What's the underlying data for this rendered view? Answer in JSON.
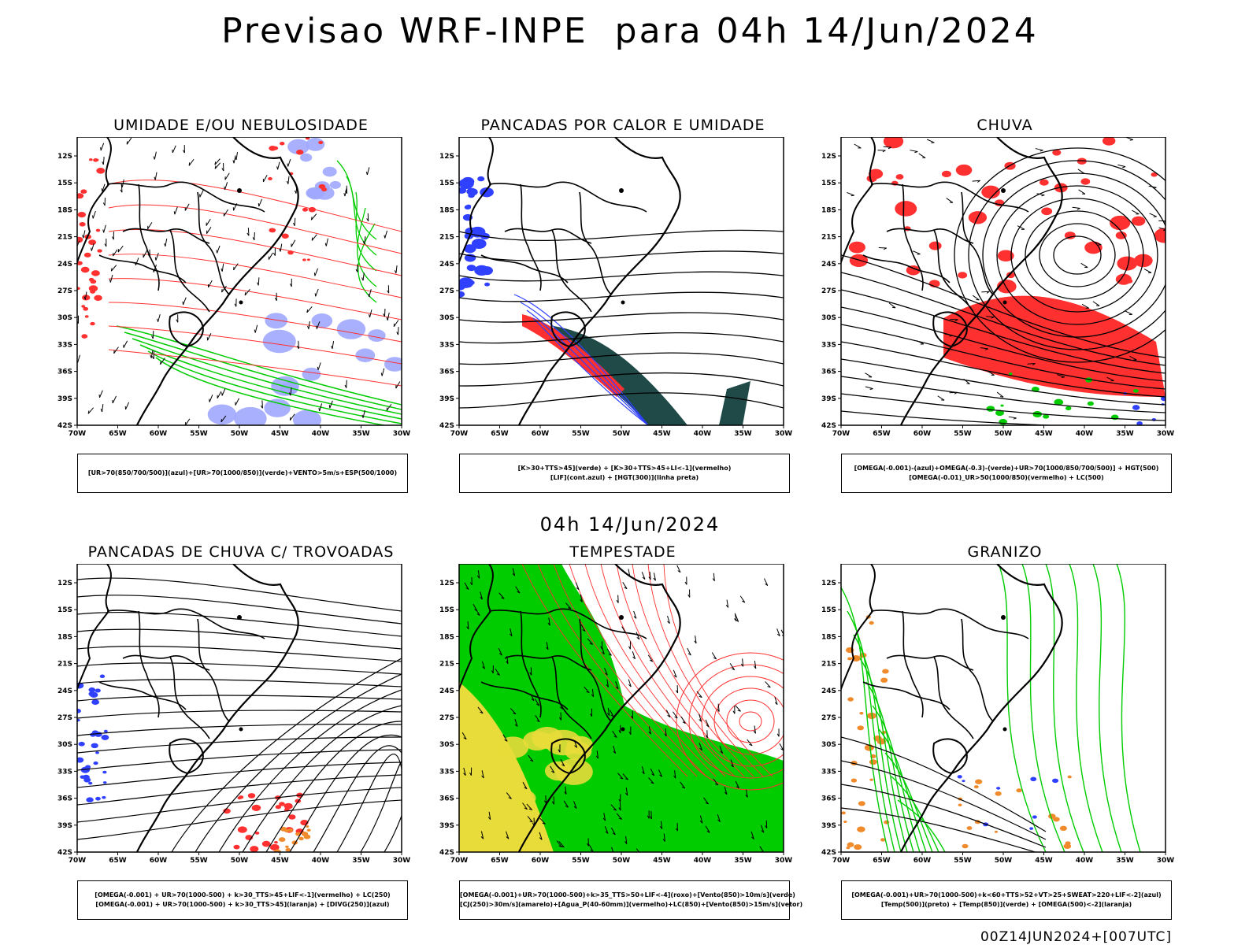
{
  "main_title": "Previsao WRF-INPE  para 04h 14/Jun/2024",
  "mid_title": "04h 14/Jun/2024",
  "footer": "00Z14JUN2024+[007UTC]",
  "axes": {
    "x_ticks": [
      "70W",
      "65W",
      "60W",
      "55W",
      "50W",
      "45W",
      "40W",
      "35W",
      "30W"
    ],
    "y_ticks": [
      "12S",
      "15S",
      "18S",
      "21S",
      "24S",
      "27S",
      "30S",
      "33S",
      "36S",
      "39S",
      "42S"
    ]
  },
  "colors": {
    "red": "#ff3030",
    "green": "#00cc00",
    "blue": "#3040ff",
    "lightblue": "#a0a8ff",
    "darkteal": "#1f4a48",
    "yellow": "#e8dc3a",
    "orange": "#f08a2a",
    "black": "#000000"
  },
  "panels": [
    {
      "id": "umidade",
      "title": "UMIDADE E/OU NEBULOSIDADE",
      "legend": [
        "[UR>70(850/700/500)](azul)+[UR>70(1000/850)](verde)+VENTO>5m/s+ESP(500/1000)"
      ]
    },
    {
      "id": "pancadas-calor",
      "title": "PANCADAS POR CALOR E UMIDADE",
      "legend": [
        "[K>30+TTS>45](verde) + [K>30+TTS>45+LI<-1](vermelho)",
        "[LIF](cont.azul) + [HGT(300)](linha preta)"
      ]
    },
    {
      "id": "chuva",
      "title": "CHUVA",
      "legend": [
        "[OMEGA(-0.001)-(azul)+OMEGA(-0.3)-(verde)+UR>70(1000/850/700/500)] + HGT(500)",
        "[OMEGA(-0.01)_UR>50(1000/850)(vermelho) + LC(500)"
      ]
    },
    {
      "id": "pancadas-trovoadas",
      "title": "PANCADAS DE CHUVA C/ TROVOADAS",
      "legend": [
        "[OMEGA(-0.001) + UR>70(1000-500) + k>30_TTS>45+LIF<-1](vermelho) + LC(250)",
        "[OMEGA(-0.001) + UR>70(1000-500) + k>30_TTS>45](laranja) + [DIVG(250)](azul)"
      ]
    },
    {
      "id": "tempestade",
      "title": "TEMPESTADE",
      "legend": [
        "[OMEGA(-0.001)+UR>70(1000-500)+k>35_TTS>50+LIF<-4](roxo)+[Vento(850)>10m/s](verde)",
        "[CJ(250)>30m/s](amarelo)+[Agua_P(40-60mm)](vermelho)+LC(850)+[Vento(850)>15m/s](vetor)"
      ]
    },
    {
      "id": "granizo",
      "title": "GRANIZO",
      "legend": [
        "[OMEGA(-0.001)+UR>70(1000-500)+k<60+TTS>52+VT>25+SWEAT>220+LIF<-2](azul)",
        "[Temp(500)](preto) + [Temp(850)](verde) + [OMEGA(500)<-2](laranja)"
      ]
    }
  ]
}
